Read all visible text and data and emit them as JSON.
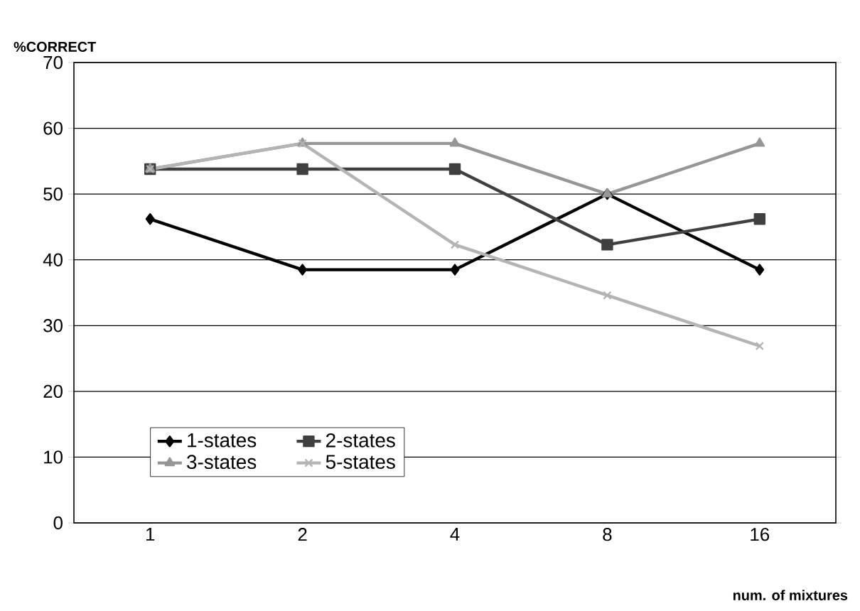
{
  "chart_data": {
    "type": "line",
    "ylabel": "%CORRECT",
    "xlabel": "num. of mixtures",
    "categories": [
      "1",
      "2",
      "4",
      "8",
      "16"
    ],
    "series": [
      {
        "name": "1-states",
        "color": "#000000",
        "marker": "diamond",
        "values": [
          46.2,
          38.5,
          38.5,
          50,
          38.5
        ]
      },
      {
        "name": "2-states",
        "color": "#404040",
        "marker": "square",
        "values": [
          53.8,
          53.8,
          53.8,
          42.3,
          46.2
        ]
      },
      {
        "name": "3-states",
        "color": "#969696",
        "marker": "triangle",
        "values": [
          53.8,
          57.7,
          57.7,
          50,
          57.7
        ]
      },
      {
        "name": "5-states",
        "color": "#b4b4b4",
        "marker": "cross",
        "values": [
          53.8,
          57.7,
          42.3,
          34.6,
          26.9
        ]
      }
    ],
    "ylim": [
      0,
      70
    ],
    "yticks": [
      0,
      10,
      20,
      30,
      40,
      50,
      60,
      70
    ],
    "grid": "y",
    "legend": "bottom",
    "line_style": "solid"
  }
}
